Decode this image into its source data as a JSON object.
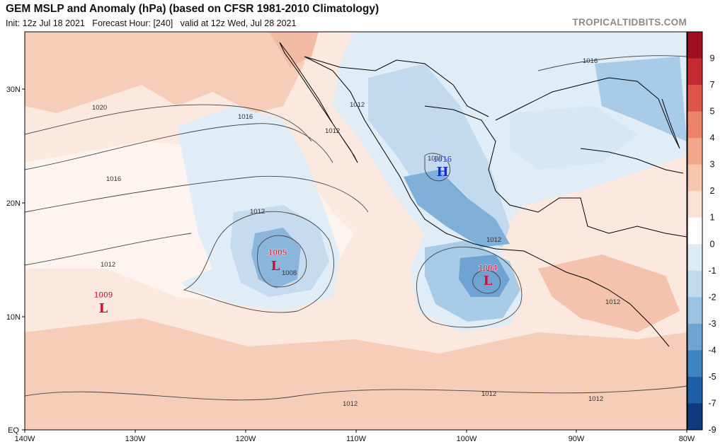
{
  "header": {
    "title": "GEM MSLP and Anomaly (hPa) (based on CFSR 1981-2010 Climatology)",
    "subtitle": "Init: 12z Jul 18 2021   Forecast Hour: [240]   valid at 12z Wed, Jul 28 2021",
    "source": "TROPICALTIDBITS.COM"
  },
  "axes": {
    "lat_ticks": [
      "30N",
      "20N",
      "10N",
      "EQ"
    ],
    "lon_ticks": [
      "140W",
      "130W",
      "120W",
      "110W",
      "100W",
      "90W",
      "80W"
    ]
  },
  "isobar_labels": [
    "1020",
    "1016",
    "1016",
    "1016",
    "1012",
    "1012",
    "1012",
    "1012",
    "1012",
    "1008",
    "1012",
    "1012",
    "1012",
    "1012",
    "1016"
  ],
  "pressure_centers": [
    {
      "type": "L",
      "value": "1009",
      "color": "#d0102a"
    },
    {
      "type": "L",
      "value": "1005",
      "color": "#d0102a"
    },
    {
      "type": "L",
      "value": "1004",
      "color": "#d0102a"
    },
    {
      "type": "H",
      "value": "1016",
      "color": "#1030d0"
    }
  ],
  "colorbar": {
    "labels": [
      "9",
      "7",
      "5",
      "4",
      "3",
      "2",
      "1",
      "0",
      "-1",
      "-2",
      "-3",
      "-4",
      "-5",
      "-7",
      "-9"
    ],
    "colors": [
      "#9c1020",
      "#c42a32",
      "#dc5546",
      "#ec8266",
      "#f3a68a",
      "#f8c6ae",
      "#fce2d4",
      "#ffffff",
      "#ddebf5",
      "#c0d9ec",
      "#9cc4e2",
      "#6ea6d2",
      "#3d84c0",
      "#1e5ea6",
      "#0c3a7c"
    ]
  },
  "colors": {
    "warm_light": "#fbe6dc",
    "warm_mid": "#f6c9b3",
    "cool_light": "#e2eef7",
    "cool_mid": "#b9d5ea",
    "cool_dark": "#5b95c8",
    "land_line": "#000000",
    "isobar": "#333333"
  }
}
